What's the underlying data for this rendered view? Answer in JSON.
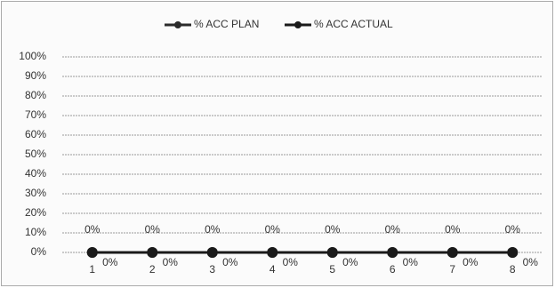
{
  "chart_data": {
    "type": "line",
    "categories": [
      "1",
      "2",
      "3",
      "4",
      "5",
      "6",
      "7",
      "8"
    ],
    "series": [
      {
        "name": "% ACC PLAN",
        "color": "#2b2b2b",
        "values": [
          0,
          0,
          0,
          0,
          0,
          0,
          0,
          0
        ],
        "value_labels": [
          "0%",
          "0%",
          "0%",
          "0%",
          "0%",
          "0%",
          "0%",
          "0%"
        ]
      },
      {
        "name": "% ACC ACTUAL",
        "color": "#1a1a1a",
        "values": [
          0,
          0,
          0,
          0,
          0,
          0,
          0,
          0
        ],
        "value_labels": [
          "0%",
          "0%",
          "0%",
          "0%",
          "0%",
          "0%",
          "0%",
          "0%"
        ]
      }
    ],
    "ylim": [
      0,
      100
    ],
    "yticks": [
      {
        "value": 0,
        "label": "0%"
      },
      {
        "value": 10,
        "label": "10%"
      },
      {
        "value": 20,
        "label": "20%"
      },
      {
        "value": 30,
        "label": "30%"
      },
      {
        "value": 40,
        "label": "40%"
      },
      {
        "value": 50,
        "label": "50%"
      },
      {
        "value": 60,
        "label": "60%"
      },
      {
        "value": 70,
        "label": "70%"
      },
      {
        "value": 80,
        "label": "80%"
      },
      {
        "value": 90,
        "label": "90%"
      },
      {
        "value": 100,
        "label": "100%"
      }
    ],
    "grid": true,
    "legend": "top"
  }
}
